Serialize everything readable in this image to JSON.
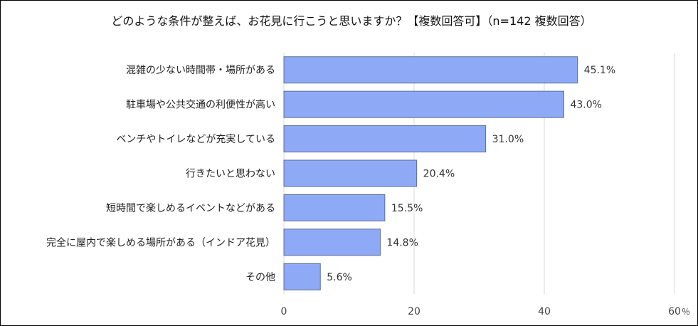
{
  "chart_data": {
    "type": "bar",
    "orientation": "horizontal",
    "title": "どのような条件が整えば、お花見に行こうと思いますか？【複数回答可】（n=142 複数回答）",
    "categories": [
      "混雑の少ない時間帯・場所がある",
      "駐車場や公共交通の利便性が高い",
      "ベンチやトイレなどが充実している",
      "行きたいと思わない",
      "短時間で楽しめるイベントなどがある",
      "完全に屋内で楽しめる場所がある（インドア花見）",
      "その他"
    ],
    "values": [
      45.1,
      43.0,
      31.0,
      20.4,
      15.5,
      14.8,
      5.6
    ],
    "value_labels": [
      "45.1%",
      "43.0%",
      "31.0%",
      "20.4%",
      "15.5%",
      "14.8%",
      "5.6%"
    ],
    "xlim": [
      0,
      60
    ],
    "xticks": [
      "0",
      "20",
      "40",
      "60"
    ],
    "unit": "％",
    "grid": true,
    "bar_color": "#8eaaf7",
    "bar_border_color": "#5c6c94",
    "grid_color": "#d9d9d9"
  }
}
